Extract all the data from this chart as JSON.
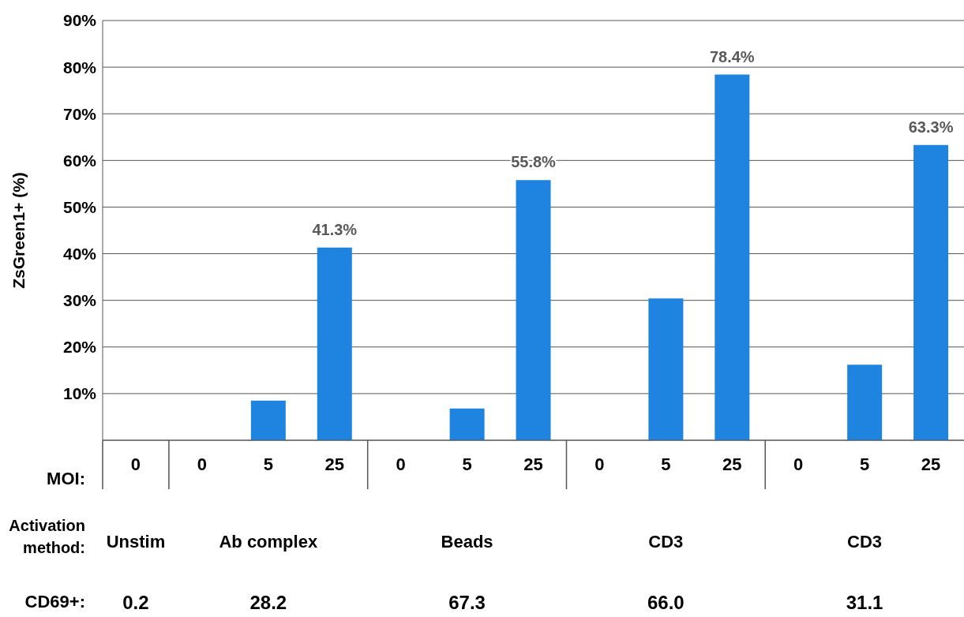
{
  "chart_data": {
    "type": "bar",
    "ylabel": "ZsGreen1+ (%)",
    "categories": [
      "0",
      "0",
      "5",
      "25",
      "0",
      "5",
      "25",
      "0",
      "5",
      "25",
      "0",
      "5",
      "25"
    ],
    "values": [
      0,
      0,
      8.5,
      41.3,
      0,
      6.8,
      55.8,
      0,
      30.4,
      78.4,
      0,
      16.2,
      63.3
    ],
    "value_labels": [
      null,
      null,
      null,
      "41.3%",
      null,
      null,
      "55.8%",
      null,
      null,
      "78.4%",
      null,
      null,
      "63.3%"
    ],
    "color": "#1f83e0",
    "ylim": [
      0,
      90
    ],
    "yticks": [
      {
        "value": 0,
        "label": null
      },
      {
        "value": 10,
        "label": "10%"
      },
      {
        "value": 20,
        "label": "20%"
      },
      {
        "value": 30,
        "label": "30%"
      },
      {
        "value": 40,
        "label": "40%"
      },
      {
        "value": 50,
        "label": "50%"
      },
      {
        "value": 60,
        "label": "60%"
      },
      {
        "value": 70,
        "label": "70%"
      },
      {
        "value": 80,
        "label": "80%"
      },
      {
        "value": 90,
        "label": "90%"
      }
    ],
    "grid": "y",
    "annotations": [
      "MOI:",
      "Activation method:",
      "Unstim",
      "Ab complex",
      "Beads",
      "CD3",
      "CD3",
      "CD69+:",
      "0.2",
      "28.2",
      "67.3",
      "66.0",
      "31.1"
    ]
  }
}
